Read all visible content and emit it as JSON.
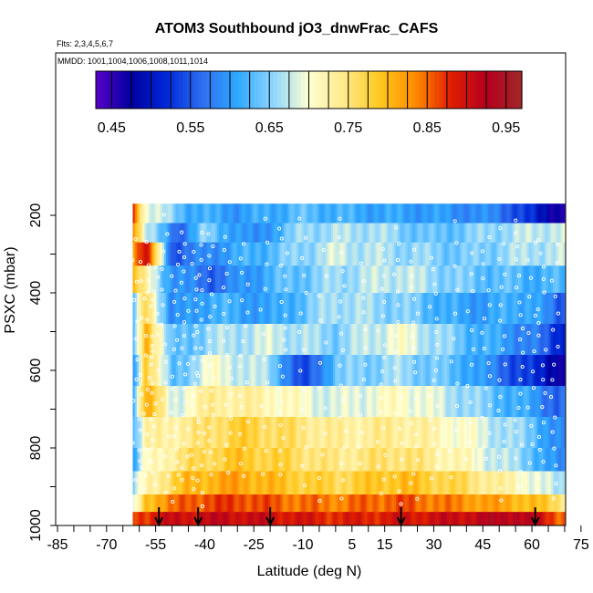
{
  "chart_data": {
    "type": "heatmap",
    "title": "ATOM3 Southbound jO3_dnwFrac_CAFS",
    "subtitle_flights": "Flts: 2,3,4,5,6,7",
    "subtitle_dates": "MMDD: 1001,1004,1006,1008,1011,1014",
    "xlabel": "Latitude (deg N)",
    "ylabel": "PSXC (mbar)",
    "xlim": [
      -85,
      85
    ],
    "ylim": [
      1000,
      0
    ],
    "x_tick_labels": [
      "-85",
      "-70",
      "-55",
      "-40",
      "-25",
      "-10",
      "5",
      "15",
      "30",
      "45",
      "60",
      "75"
    ],
    "y_tick_labels": [
      "200",
      "400",
      "600",
      "800",
      "1000"
    ],
    "colorbar": {
      "range": [
        0.43,
        0.97
      ],
      "tick_labels": [
        "0.45",
        "0.55",
        "0.65",
        "0.75",
        "0.85",
        "0.95"
      ],
      "colors": [
        "#5a00c8",
        "#0000a0",
        "#0028d8",
        "#2e6ff0",
        "#2ea8ff",
        "#8fd6ff",
        "#ffffd0",
        "#ffe98a",
        "#ffc81e",
        "#ff8c00",
        "#e01e00",
        "#b4001e",
        "#a02828"
      ]
    },
    "flight_marker_latitudes": [
      -54,
      -42,
      -20,
      20,
      61
    ],
    "data_region": {
      "lat_min": -62,
      "lat_max": 70,
      "p_min": 170,
      "p_max": 1000
    },
    "layers": [
      {
        "p_range": [
          170,
          220
        ],
        "fractions_by_lat": [
          [
            -62,
            0.88
          ],
          [
            -58,
            0.7
          ],
          [
            -45,
            0.62
          ],
          [
            -30,
            0.6
          ],
          [
            -10,
            0.63
          ],
          [
            10,
            0.61
          ],
          [
            30,
            0.6
          ],
          [
            50,
            0.58
          ],
          [
            62,
            0.5
          ],
          [
            68,
            0.47
          ]
        ]
      },
      {
        "p_range": [
          220,
          270
        ],
        "fractions_by_lat": [
          [
            -62,
            0.86
          ],
          [
            -58,
            0.68
          ],
          [
            -48,
            0.56
          ],
          [
            -40,
            0.65
          ],
          [
            -25,
            0.58
          ],
          [
            -10,
            0.66
          ],
          [
            10,
            0.67
          ],
          [
            30,
            0.63
          ],
          [
            50,
            0.66
          ],
          [
            65,
            0.68
          ]
        ]
      },
      {
        "p_range": [
          270,
          330
        ],
        "fractions_by_lat": [
          [
            -62,
            0.82
          ],
          [
            -58,
            0.9
          ],
          [
            -50,
            0.55
          ],
          [
            -35,
            0.6
          ],
          [
            -20,
            0.63
          ],
          [
            0,
            0.68
          ],
          [
            20,
            0.66
          ],
          [
            40,
            0.64
          ],
          [
            60,
            0.67
          ]
        ]
      },
      {
        "p_range": [
          330,
          400
        ],
        "fractions_by_lat": [
          [
            -62,
            0.8
          ],
          [
            -58,
            0.72
          ],
          [
            -50,
            0.6
          ],
          [
            -38,
            0.56
          ],
          [
            -20,
            0.62
          ],
          [
            0,
            0.66
          ],
          [
            20,
            0.68
          ],
          [
            40,
            0.64
          ],
          [
            60,
            0.62
          ]
        ]
      },
      {
        "p_range": [
          400,
          480
        ],
        "fractions_by_lat": [
          [
            -62,
            0.62
          ],
          [
            -58,
            0.78
          ],
          [
            -50,
            0.58
          ],
          [
            -38,
            0.62
          ],
          [
            -20,
            0.6
          ],
          [
            0,
            0.67
          ],
          [
            20,
            0.65
          ],
          [
            40,
            0.6
          ],
          [
            60,
            0.62
          ],
          [
            68,
            0.55
          ]
        ]
      },
      {
        "p_range": [
          480,
          560
        ],
        "fractions_by_lat": [
          [
            -62,
            0.6
          ],
          [
            -58,
            0.82
          ],
          [
            -50,
            0.62
          ],
          [
            -38,
            0.66
          ],
          [
            -20,
            0.68
          ],
          [
            0,
            0.65
          ],
          [
            20,
            0.7
          ],
          [
            40,
            0.63
          ],
          [
            60,
            0.58
          ],
          [
            68,
            0.52
          ]
        ]
      },
      {
        "p_range": [
          560,
          640
        ],
        "fractions_by_lat": [
          [
            -62,
            0.58
          ],
          [
            -58,
            0.8
          ],
          [
            -50,
            0.62
          ],
          [
            -38,
            0.7
          ],
          [
            -20,
            0.66
          ],
          [
            -10,
            0.52
          ],
          [
            0,
            0.64
          ],
          [
            20,
            0.66
          ],
          [
            40,
            0.62
          ],
          [
            60,
            0.52
          ],
          [
            68,
            0.48
          ]
        ]
      },
      {
        "p_range": [
          640,
          720
        ],
        "fractions_by_lat": [
          [
            -62,
            0.62
          ],
          [
            -58,
            0.82
          ],
          [
            -50,
            0.68
          ],
          [
            -38,
            0.74
          ],
          [
            -20,
            0.72
          ],
          [
            0,
            0.68
          ],
          [
            20,
            0.71
          ],
          [
            40,
            0.66
          ],
          [
            60,
            0.6
          ],
          [
            68,
            0.56
          ]
        ]
      },
      {
        "p_range": [
          720,
          800
        ],
        "fractions_by_lat": [
          [
            -62,
            0.62
          ],
          [
            -58,
            0.72
          ],
          [
            -45,
            0.74
          ],
          [
            -30,
            0.78
          ],
          [
            -15,
            0.76
          ],
          [
            0,
            0.73
          ],
          [
            20,
            0.74
          ],
          [
            40,
            0.7
          ],
          [
            60,
            0.64
          ],
          [
            68,
            0.58
          ]
        ]
      },
      {
        "p_range": [
          800,
          860
        ],
        "fractions_by_lat": [
          [
            -62,
            0.6
          ],
          [
            -58,
            0.7
          ],
          [
            -45,
            0.76
          ],
          [
            -30,
            0.79
          ],
          [
            -15,
            0.77
          ],
          [
            0,
            0.74
          ],
          [
            20,
            0.76
          ],
          [
            40,
            0.71
          ],
          [
            60,
            0.64
          ],
          [
            68,
            0.58
          ]
        ]
      },
      {
        "p_range": [
          860,
          920
        ],
        "fractions_by_lat": [
          [
            -62,
            0.64
          ],
          [
            -58,
            0.72
          ],
          [
            -45,
            0.8
          ],
          [
            -30,
            0.82
          ],
          [
            -15,
            0.79
          ],
          [
            0,
            0.77
          ],
          [
            20,
            0.8
          ],
          [
            40,
            0.76
          ],
          [
            60,
            0.7
          ],
          [
            68,
            0.66
          ]
        ]
      },
      {
        "p_range": [
          920,
          965
        ],
        "fractions_by_lat": [
          [
            -62,
            0.66
          ],
          [
            -58,
            0.8
          ],
          [
            -45,
            0.86
          ],
          [
            -30,
            0.87
          ],
          [
            -15,
            0.85
          ],
          [
            0,
            0.84
          ],
          [
            20,
            0.86
          ],
          [
            40,
            0.83
          ],
          [
            60,
            0.8
          ],
          [
            68,
            0.76
          ]
        ]
      },
      {
        "p_range": [
          965,
          1000
        ],
        "fractions_by_lat": [
          [
            -62,
            0.87
          ],
          [
            -50,
            0.9
          ],
          [
            -35,
            0.91
          ],
          [
            -20,
            0.9
          ],
          [
            0,
            0.88
          ],
          [
            20,
            0.89
          ],
          [
            40,
            0.91
          ],
          [
            55,
            0.93
          ],
          [
            62,
            0.9
          ],
          [
            68,
            0.86
          ]
        ]
      }
    ]
  }
}
